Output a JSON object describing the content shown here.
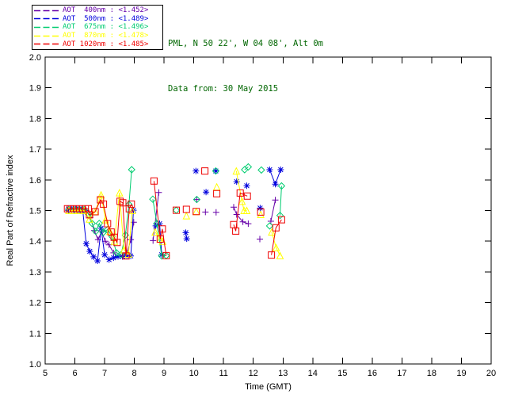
{
  "header": {
    "line1": "PML, N 50 22', W 04 08', Alt 0m",
    "line2": "Data from: 30 May 2015",
    "color": "#006600"
  },
  "plot_frame_color": "#000000",
  "background_color": "#ffffff",
  "chart_data": {
    "type": "line",
    "title": "",
    "xlabel": "Time (GMT)",
    "ylabel": "Real Part of Refractive index",
    "xlim": [
      5,
      20
    ],
    "ylim": [
      1.0,
      2.0
    ],
    "xtick_labels": [
      "5",
      "6",
      "7",
      "8",
      "9",
      "10",
      "11",
      "12",
      "13",
      "14",
      "15",
      "16",
      "17",
      "18",
      "19",
      "20"
    ],
    "ytick_labels": [
      "1.0",
      "1.1",
      "1.2",
      "1.3",
      "1.4",
      "1.5",
      "1.6",
      "1.7",
      "1.8",
      "1.9",
      "2.0"
    ],
    "grid": false,
    "legend_position": "top-left-outside",
    "line_gap_threshold_hours": 0.25,
    "series": [
      {
        "name": "AOT  400nm",
        "legend_value": "<1.452>",
        "color": "#6600A8",
        "marker": "plus",
        "points": [
          [
            5.78,
            1.5
          ],
          [
            5.88,
            1.5
          ],
          [
            5.98,
            1.5
          ],
          [
            6.08,
            1.5
          ],
          [
            6.18,
            1.5
          ],
          [
            6.28,
            1.5
          ],
          [
            6.38,
            1.5
          ],
          [
            6.52,
            1.478
          ],
          [
            6.65,
            1.435
          ],
          [
            6.78,
            1.405
          ],
          [
            6.9,
            1.432
          ],
          [
            7.02,
            1.4
          ],
          [
            7.15,
            1.388
          ],
          [
            7.3,
            1.362
          ],
          [
            7.45,
            1.352
          ],
          [
            7.6,
            1.352
          ],
          [
            7.75,
            1.36
          ],
          [
            7.88,
            1.405
          ],
          [
            7.98,
            1.462
          ],
          [
            8.63,
            1.402
          ],
          [
            8.82,
            1.559
          ],
          [
            10.1,
            1.536
          ],
          [
            10.39,
            1.495
          ],
          [
            10.75,
            1.494
          ],
          [
            11.34,
            1.511
          ],
          [
            11.44,
            1.487
          ],
          [
            11.65,
            1.463
          ],
          [
            11.83,
            1.457
          ],
          [
            12.22,
            1.407
          ],
          [
            12.59,
            1.465
          ],
          [
            12.74,
            1.534
          ]
        ]
      },
      {
        "name": "AOT  500nm",
        "legend_value": "<1.489>",
        "color": "#0000DD",
        "marker": "asterisk",
        "points": [
          [
            5.78,
            1.505
          ],
          [
            5.9,
            1.505
          ],
          [
            6.02,
            1.505
          ],
          [
            6.14,
            1.505
          ],
          [
            6.26,
            1.505
          ],
          [
            6.38,
            1.392
          ],
          [
            6.5,
            1.367
          ],
          [
            6.63,
            1.349
          ],
          [
            6.76,
            1.336
          ],
          [
            6.88,
            1.442
          ],
          [
            7.0,
            1.356
          ],
          [
            7.15,
            1.34
          ],
          [
            7.3,
            1.346
          ],
          [
            7.45,
            1.35
          ],
          [
            7.6,
            1.35
          ],
          [
            7.75,
            1.352
          ],
          [
            7.88,
            1.352
          ],
          [
            7.97,
            1.501
          ],
          [
            8.72,
            1.45
          ],
          [
            8.85,
            1.457
          ],
          [
            8.92,
            1.356
          ],
          [
            9.73,
            1.428
          ],
          [
            9.76,
            1.408
          ],
          [
            10.07,
            1.629
          ],
          [
            10.41,
            1.56
          ],
          [
            10.74,
            1.629
          ],
          [
            11.44,
            1.594
          ],
          [
            11.78,
            1.581
          ],
          [
            12.23,
            1.508
          ],
          [
            12.55,
            1.633
          ],
          [
            12.74,
            1.586
          ],
          [
            12.92,
            1.633
          ]
        ]
      },
      {
        "name": "AOT  675nm",
        "legend_value": "<1.496>",
        "color": "#00CC70",
        "marker": "diamond",
        "points": [
          [
            5.8,
            1.503
          ],
          [
            5.97,
            1.503
          ],
          [
            6.14,
            1.503
          ],
          [
            6.31,
            1.503
          ],
          [
            6.46,
            1.488
          ],
          [
            6.58,
            1.458
          ],
          [
            6.7,
            1.432
          ],
          [
            6.82,
            1.458
          ],
          [
            6.95,
            1.428
          ],
          [
            7.1,
            1.438
          ],
          [
            7.25,
            1.415
          ],
          [
            7.4,
            1.362
          ],
          [
            7.55,
            1.356
          ],
          [
            7.7,
            1.42
          ],
          [
            7.82,
            1.52
          ],
          [
            7.91,
            1.633
          ],
          [
            8.62,
            1.537
          ],
          [
            8.76,
            1.458
          ],
          [
            8.92,
            1.352
          ],
          [
            9.07,
            1.353
          ],
          [
            9.41,
            1.501
          ],
          [
            10.1,
            1.536
          ],
          [
            10.74,
            1.629
          ],
          [
            11.71,
            1.633
          ],
          [
            11.83,
            1.642
          ],
          [
            12.27,
            1.632
          ],
          [
            12.55,
            1.45
          ],
          [
            12.9,
            1.484
          ],
          [
            12.95,
            1.58
          ]
        ]
      },
      {
        "name": "AOT  870nm",
        "legend_value": "<1.478>",
        "color": "#FFFF00",
        "marker": "triangle",
        "points": [
          [
            5.8,
            1.5
          ],
          [
            5.97,
            1.5
          ],
          [
            6.14,
            1.5
          ],
          [
            6.31,
            1.5
          ],
          [
            6.49,
            1.472
          ],
          [
            6.68,
            1.497
          ],
          [
            6.88,
            1.551
          ],
          [
            7.03,
            1.47
          ],
          [
            7.18,
            1.432
          ],
          [
            7.33,
            1.4
          ],
          [
            7.5,
            1.558
          ],
          [
            7.65,
            1.372
          ],
          [
            7.8,
            1.358
          ],
          [
            7.93,
            1.5
          ],
          [
            8.7,
            1.43
          ],
          [
            8.87,
            1.407
          ],
          [
            8.95,
            1.4
          ],
          [
            9.75,
            1.483
          ],
          [
            10.08,
            1.497
          ],
          [
            10.77,
            1.577
          ],
          [
            11.43,
            1.629
          ],
          [
            11.62,
            1.53
          ],
          [
            11.69,
            1.5
          ],
          [
            11.78,
            1.5
          ],
          [
            12.25,
            1.487
          ],
          [
            12.62,
            1.43
          ],
          [
            12.77,
            1.379
          ],
          [
            12.9,
            1.353
          ]
        ]
      },
      {
        "name": "AOT 1020nm",
        "legend_value": "<1.485>",
        "color": "#EE0000",
        "marker": "square",
        "points": [
          [
            5.75,
            1.506
          ],
          [
            5.85,
            1.506
          ],
          [
            5.95,
            1.506
          ],
          [
            6.05,
            1.506
          ],
          [
            6.15,
            1.506
          ],
          [
            6.25,
            1.506
          ],
          [
            6.35,
            1.506
          ],
          [
            6.45,
            1.506
          ],
          [
            6.49,
            1.486
          ],
          [
            6.68,
            1.496
          ],
          [
            6.86,
            1.535
          ],
          [
            6.96,
            1.521
          ],
          [
            7.1,
            1.457
          ],
          [
            7.22,
            1.43
          ],
          [
            7.32,
            1.413
          ],
          [
            7.42,
            1.396
          ],
          [
            7.52,
            1.53
          ],
          [
            7.61,
            1.525
          ],
          [
            7.72,
            1.352
          ],
          [
            7.83,
            1.506
          ],
          [
            7.9,
            1.521
          ],
          [
            8.66,
            1.596
          ],
          [
            8.87,
            1.407
          ],
          [
            8.94,
            1.44
          ],
          [
            9.07,
            1.353
          ],
          [
            9.41,
            1.501
          ],
          [
            9.75,
            1.504
          ],
          [
            10.08,
            1.497
          ],
          [
            10.37,
            1.629
          ],
          [
            10.77,
            1.555
          ],
          [
            11.34,
            1.454
          ],
          [
            11.41,
            1.433
          ],
          [
            11.56,
            1.557
          ],
          [
            11.8,
            1.547
          ],
          [
            12.25,
            1.495
          ],
          [
            12.61,
            1.355
          ],
          [
            12.76,
            1.444
          ],
          [
            12.95,
            1.47
          ]
        ]
      }
    ]
  }
}
